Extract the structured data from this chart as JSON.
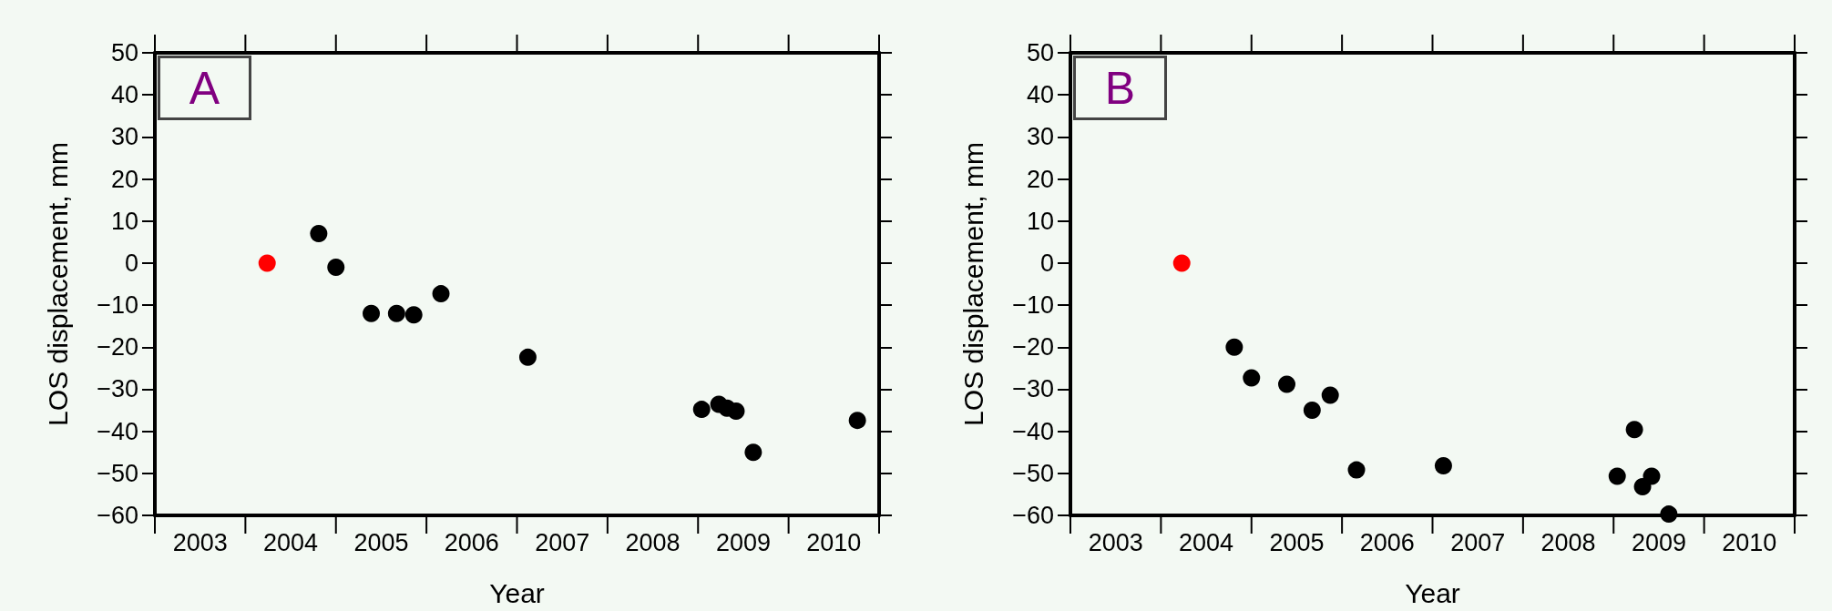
{
  "chart_data": [
    {
      "type": "scatter",
      "xlabel": "Year",
      "ylabel": "LOS displacement, mm",
      "annotations": [
        "A"
      ],
      "marker": "circle",
      "grid": false,
      "xlim": [
        2003,
        2011
      ],
      "ylim": [
        -60,
        50
      ],
      "xticks": [
        {
          "value": 2003.5,
          "label": "2003"
        },
        {
          "value": 2004.5,
          "label": "2004"
        },
        {
          "value": 2005.5,
          "label": "2005"
        },
        {
          "value": 2006.5,
          "label": "2006"
        },
        {
          "value": 2007.5,
          "label": "2007"
        },
        {
          "value": 2008.5,
          "label": "2008"
        },
        {
          "value": 2009.5,
          "label": "2009"
        },
        {
          "value": 2010.5,
          "label": "2010"
        }
      ],
      "yticks": [
        -60,
        -50,
        -40,
        -30,
        -20,
        -10,
        0,
        10,
        20,
        30,
        40,
        50
      ],
      "series": [
        {
          "color": "#ff0000",
          "x": [
            2004.24
          ],
          "values": [
            0
          ]
        },
        {
          "color": "#000000",
          "x": [
            2004.81,
            2005.0,
            2005.39,
            2005.67,
            2005.86,
            2006.16,
            2007.12,
            2009.04,
            2009.23,
            2009.32,
            2009.42,
            2009.61,
            2010.76
          ],
          "values": [
            7,
            -1,
            -12,
            -12,
            -12.3,
            -7.3,
            -22.4,
            -34.8,
            -33.6,
            -34.5,
            -35.2,
            -45,
            -37.4
          ]
        }
      ]
    },
    {
      "type": "scatter",
      "xlabel": "Year",
      "ylabel": "LOS displacement, mm",
      "annotations": [
        "B"
      ],
      "marker": "circle",
      "grid": false,
      "xlim": [
        2003,
        2011
      ],
      "ylim": [
        -60,
        50
      ],
      "xticks": [
        {
          "value": 2003.5,
          "label": "2003"
        },
        {
          "value": 2004.5,
          "label": "2004"
        },
        {
          "value": 2005.5,
          "label": "2005"
        },
        {
          "value": 2006.5,
          "label": "2006"
        },
        {
          "value": 2007.5,
          "label": "2007"
        },
        {
          "value": 2008.5,
          "label": "2008"
        },
        {
          "value": 2009.5,
          "label": "2009"
        },
        {
          "value": 2010.5,
          "label": "2010"
        }
      ],
      "yticks": [
        -60,
        -50,
        -40,
        -30,
        -20,
        -10,
        0,
        10,
        20,
        30,
        40,
        50
      ],
      "series": [
        {
          "color": "#ff0000",
          "x": [
            2004.23
          ],
          "values": [
            0
          ]
        },
        {
          "color": "#000000",
          "x": [
            2004.81,
            2005.0,
            2005.39,
            2005.67,
            2005.87,
            2006.16,
            2007.12,
            2009.04,
            2009.23,
            2009.32,
            2009.42,
            2009.61
          ],
          "values": [
            -20,
            -27.3,
            -28.8,
            -35,
            -31.4,
            -49.2,
            -48.2,
            -50.7,
            -39.6,
            -53.2,
            -50.7,
            -59.7
          ]
        }
      ]
    }
  ]
}
